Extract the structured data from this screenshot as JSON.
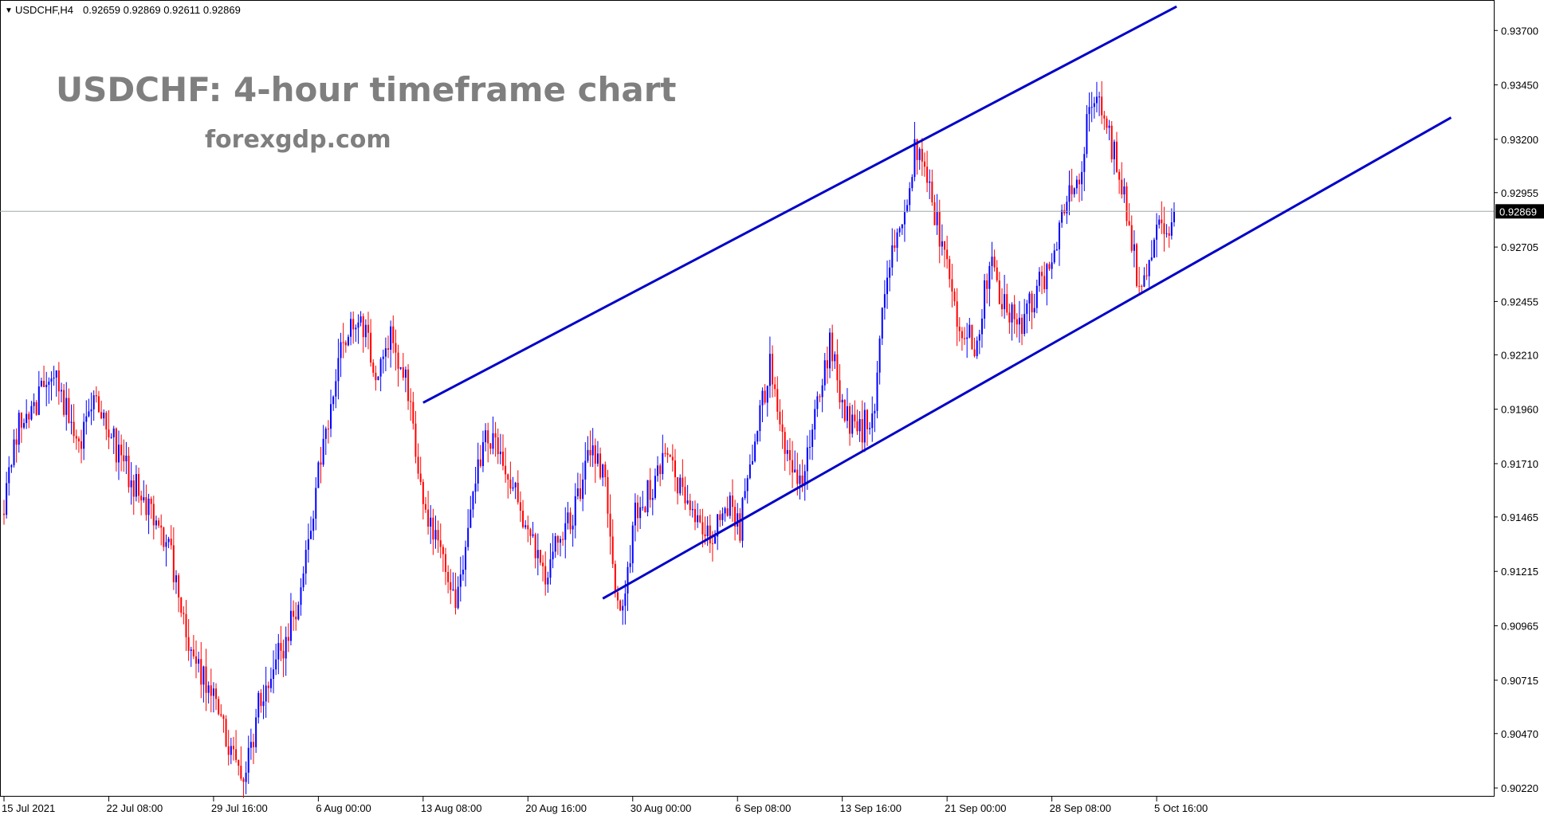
{
  "header": {
    "symbol": "USDCHF,H4",
    "ohlc": "0.92659 0.92869 0.92611 0.92869"
  },
  "watermark": {
    "title": "USDCHF: 4-hour timeframe chart",
    "site": "forexgdp.com"
  },
  "colors": {
    "bull": "#0000ff",
    "bear": "#ff0000",
    "channel": "#0000c8",
    "price_line": "#a0a8a8",
    "axis": "#000000"
  },
  "chart_data": {
    "type": "candlestick",
    "symbol": "USDCHF",
    "timeframe": "H4",
    "last_price": 0.92869,
    "last_price_label": "0.92869",
    "y_ticks": [
      "0.93700",
      "0.93450",
      "0.93200",
      "0.92955",
      "0.92705",
      "0.92455",
      "0.92210",
      "0.91960",
      "0.91710",
      "0.91465",
      "0.91215",
      "0.90965",
      "0.90715",
      "0.90470",
      "0.90220"
    ],
    "y_range": [
      0.9018,
      0.9384
    ],
    "x_ticks": [
      "15 Jul 2021",
      "22 Jul 08:00",
      "29 Jul 16:00",
      "6 Aug 00:00",
      "13 Aug 08:00",
      "20 Aug 16:00",
      "30 Aug 00:00",
      "6 Sep 08:00",
      "13 Sep 16:00",
      "21 Sep 00:00",
      "28 Sep 08:00",
      "5 Oct 16:00"
    ],
    "x_tick_index": [
      0,
      42,
      84,
      126,
      168,
      210,
      252,
      294,
      336,
      378,
      420,
      462
    ],
    "bar_count": 470,
    "anchors": [
      {
        "i": 0,
        "p": 0.9148
      },
      {
        "i": 8,
        "p": 0.9193
      },
      {
        "i": 14,
        "p": 0.92
      },
      {
        "i": 22,
        "p": 0.9211
      },
      {
        "i": 30,
        "p": 0.918
      },
      {
        "i": 38,
        "p": 0.9198
      },
      {
        "i": 46,
        "p": 0.9178
      },
      {
        "i": 54,
        "p": 0.916
      },
      {
        "i": 62,
        "p": 0.9148
      },
      {
        "i": 70,
        "p": 0.912
      },
      {
        "i": 76,
        "p": 0.9082
      },
      {
        "i": 84,
        "p": 0.9065
      },
      {
        "i": 92,
        "p": 0.904
      },
      {
        "i": 98,
        "p": 0.9028
      },
      {
        "i": 104,
        "p": 0.9065
      },
      {
        "i": 112,
        "p": 0.9085
      },
      {
        "i": 120,
        "p": 0.911
      },
      {
        "i": 126,
        "p": 0.916
      },
      {
        "i": 132,
        "p": 0.92
      },
      {
        "i": 138,
        "p": 0.923
      },
      {
        "i": 144,
        "p": 0.9238
      },
      {
        "i": 150,
        "p": 0.9215
      },
      {
        "i": 156,
        "p": 0.9228
      },
      {
        "i": 162,
        "p": 0.9215
      },
      {
        "i": 166,
        "p": 0.918
      },
      {
        "i": 170,
        "p": 0.915
      },
      {
        "i": 176,
        "p": 0.9128
      },
      {
        "i": 182,
        "p": 0.9105
      },
      {
        "i": 188,
        "p": 0.915
      },
      {
        "i": 194,
        "p": 0.9185
      },
      {
        "i": 200,
        "p": 0.9175
      },
      {
        "i": 206,
        "p": 0.9162
      },
      {
        "i": 212,
        "p": 0.9135
      },
      {
        "i": 218,
        "p": 0.912
      },
      {
        "i": 224,
        "p": 0.914
      },
      {
        "i": 230,
        "p": 0.915
      },
      {
        "i": 236,
        "p": 0.9178
      },
      {
        "i": 242,
        "p": 0.9168
      },
      {
        "i": 246,
        "p": 0.911
      },
      {
        "i": 250,
        "p": 0.9108
      },
      {
        "i": 254,
        "p": 0.915
      },
      {
        "i": 260,
        "p": 0.9158
      },
      {
        "i": 266,
        "p": 0.9175
      },
      {
        "i": 272,
        "p": 0.916
      },
      {
        "i": 278,
        "p": 0.9145
      },
      {
        "i": 284,
        "p": 0.9135
      },
      {
        "i": 290,
        "p": 0.9155
      },
      {
        "i": 296,
        "p": 0.9142
      },
      {
        "i": 302,
        "p": 0.9185
      },
      {
        "i": 308,
        "p": 0.9215
      },
      {
        "i": 314,
        "p": 0.9175
      },
      {
        "i": 320,
        "p": 0.916
      },
      {
        "i": 326,
        "p": 0.919
      },
      {
        "i": 332,
        "p": 0.9225
      },
      {
        "i": 338,
        "p": 0.9195
      },
      {
        "i": 344,
        "p": 0.9185
      },
      {
        "i": 350,
        "p": 0.9198
      },
      {
        "i": 354,
        "p": 0.9255
      },
      {
        "i": 358,
        "p": 0.9275
      },
      {
        "i": 362,
        "p": 0.9282
      },
      {
        "i": 366,
        "p": 0.9318
      },
      {
        "i": 370,
        "p": 0.9305
      },
      {
        "i": 374,
        "p": 0.9285
      },
      {
        "i": 378,
        "p": 0.927
      },
      {
        "i": 384,
        "p": 0.9235
      },
      {
        "i": 390,
        "p": 0.9225
      },
      {
        "i": 396,
        "p": 0.9262
      },
      {
        "i": 402,
        "p": 0.9245
      },
      {
        "i": 408,
        "p": 0.9235
      },
      {
        "i": 414,
        "p": 0.9248
      },
      {
        "i": 420,
        "p": 0.9262
      },
      {
        "i": 426,
        "p": 0.929
      },
      {
        "i": 432,
        "p": 0.93
      },
      {
        "i": 436,
        "p": 0.934
      },
      {
        "i": 442,
        "p": 0.933
      },
      {
        "i": 448,
        "p": 0.9305
      },
      {
        "i": 452,
        "p": 0.9282
      },
      {
        "i": 456,
        "p": 0.9248
      },
      {
        "i": 460,
        "p": 0.9262
      },
      {
        "i": 464,
        "p": 0.929
      },
      {
        "i": 468,
        "p": 0.9272
      },
      {
        "i": 470,
        "p": 0.9285
      }
    ],
    "channel_lines": [
      {
        "name": "upper",
        "from": {
          "i": 168,
          "p": 0.9199
        },
        "to": {
          "i": 470,
          "p": 0.9381
        }
      },
      {
        "name": "lower",
        "from": {
          "i": 240,
          "p": 0.9109
        },
        "to": {
          "i": 580,
          "p": 0.933
        }
      }
    ],
    "grid": false,
    "legend": "none"
  }
}
